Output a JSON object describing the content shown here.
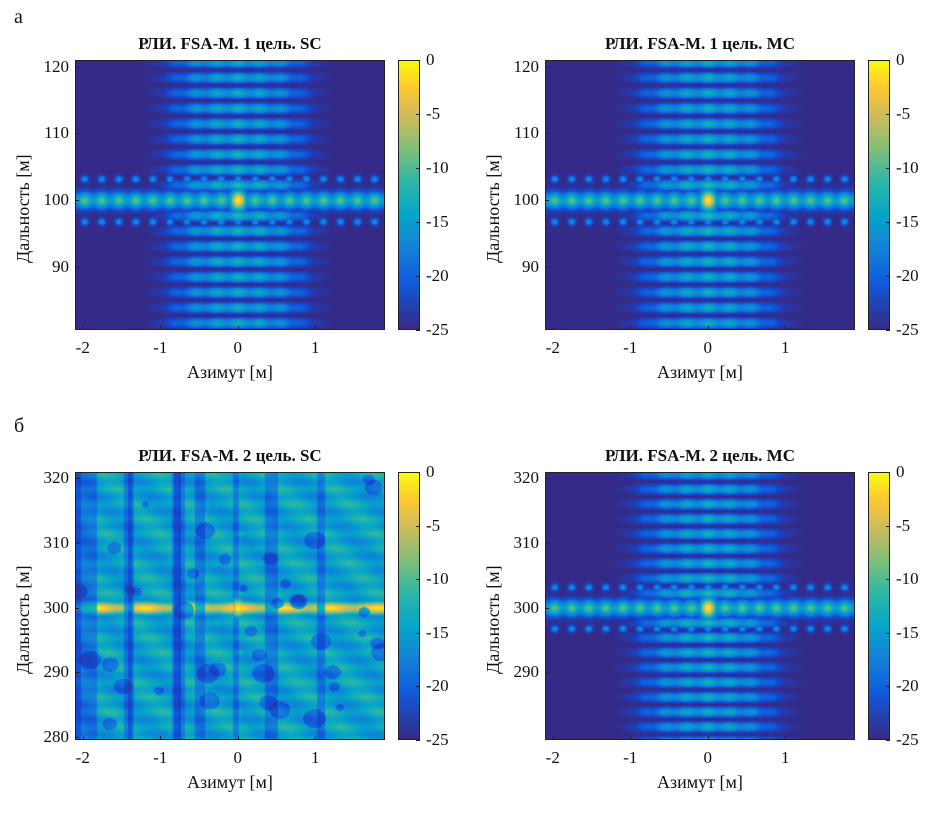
{
  "panel_labels": [
    "а",
    "б"
  ],
  "chart_data": [
    {
      "type": "heatmap",
      "title": "РЛИ. FSA-M. 1 цель. SC",
      "xlabel": "Азимут [м]",
      "ylabel": "Дальность [м]",
      "xlim": [
        -2.1,
        1.9
      ],
      "ylim": [
        80.5,
        121
      ],
      "xticks": [
        "-2",
        "-1",
        "0",
        "1"
      ],
      "xtick_values": [
        -2,
        -1,
        0,
        1
      ],
      "yticks": [
        "90",
        "100",
        "110",
        "120"
      ],
      "ytick_values": [
        90,
        100,
        110,
        120
      ],
      "colorbar": {
        "ticks": [
          "0",
          "-5",
          "-10",
          "-15",
          "-20",
          "-25"
        ],
        "range": [
          -25,
          0
        ],
        "colormap": "parula"
      },
      "target": {
        "x": 0,
        "y": 100
      },
      "style": "single-clean"
    },
    {
      "type": "heatmap",
      "title": "РЛИ. FSA-M. 1 цель. MC",
      "xlabel": "Азимут [м]",
      "ylabel": "Дальность [м]",
      "xlim": [
        -2.1,
        1.9
      ],
      "ylim": [
        80.5,
        121
      ],
      "xticks": [
        "-2",
        "-1",
        "0",
        "1"
      ],
      "xtick_values": [
        -2,
        -1,
        0,
        1
      ],
      "yticks": [
        "90",
        "100",
        "110",
        "120"
      ],
      "ytick_values": [
        90,
        100,
        110,
        120
      ],
      "colorbar": {
        "ticks": [
          "0",
          "-5",
          "-10",
          "-15",
          "-20",
          "-25"
        ],
        "range": [
          -25,
          0
        ],
        "colormap": "parula"
      },
      "target": {
        "x": 0,
        "y": 100
      },
      "style": "single-clean"
    },
    {
      "type": "heatmap",
      "title": "РЛИ. FSA-M. 2 цель. SC",
      "xlabel": "Азимут [м]",
      "ylabel": "Дальность [м]",
      "xlim": [
        -2.1,
        1.9
      ],
      "ylim": [
        279.5,
        321
      ],
      "xticks": [
        "-2",
        "-1",
        "0",
        "1"
      ],
      "xtick_values": [
        -2,
        -1,
        0,
        1
      ],
      "yticks": [
        "280",
        "290",
        "300",
        "310",
        "320"
      ],
      "ytick_values": [
        280,
        290,
        300,
        310,
        320
      ],
      "colorbar": {
        "ticks": [
          "0",
          "-5",
          "-10",
          "-15",
          "-20",
          "-25"
        ],
        "range": [
          -25,
          0
        ],
        "colormap": "parula"
      },
      "target": {
        "x": 0,
        "y": 300
      },
      "style": "noisy"
    },
    {
      "type": "heatmap",
      "title": "РЛИ. FSA-M. 2 цель. MC",
      "xlabel": "Азимут [м]",
      "ylabel": "Дальность [м]",
      "xlim": [
        -2.1,
        1.9
      ],
      "ylim": [
        279.5,
        321
      ],
      "xticks": [
        "-2",
        "-1",
        "0",
        "1"
      ],
      "xtick_values": [
        -2,
        -1,
        0,
        1
      ],
      "yticks": [
        "290",
        "300",
        "310",
        "320"
      ],
      "ytick_values": [
        290,
        300,
        310,
        320
      ],
      "colorbar": {
        "ticks": [
          "0",
          "-5",
          "-10",
          "-15",
          "-20",
          "-25"
        ],
        "range": [
          -25,
          0
        ],
        "colormap": "parula"
      },
      "target": {
        "x": 0,
        "y": 300
      },
      "style": "single-clean"
    }
  ]
}
